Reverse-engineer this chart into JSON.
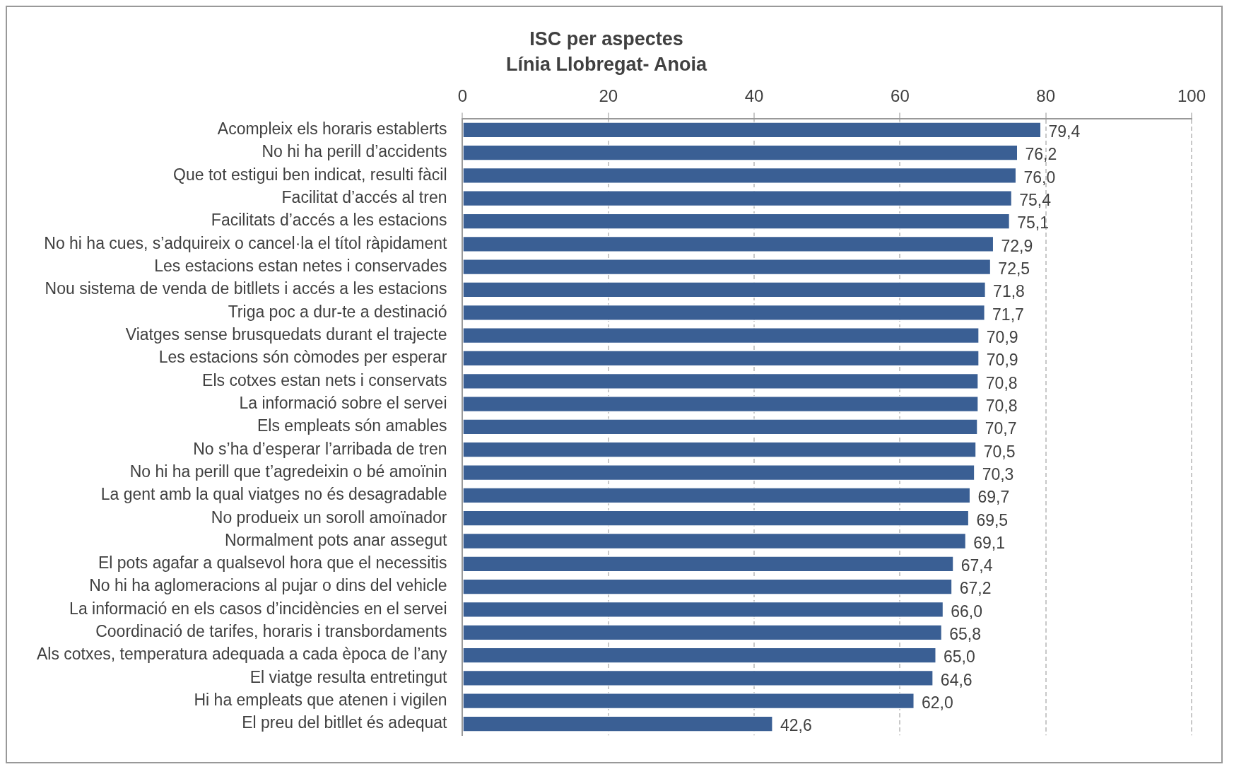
{
  "chart_data": {
    "type": "bar",
    "orientation": "horizontal",
    "title": "ISC per aspectes",
    "subtitle": "Línia Llobregat- Anoia",
    "categories": [
      "Acompleix els horaris establerts",
      "No hi ha perill d’accidents",
      "Que tot estigui ben indicat, resulti fàcil",
      "Facilitat d’accés al tren",
      "Facilitats d’accés a les estacions",
      "No hi ha cues, s’adquireix o cancel·la el títol ràpidament",
      "Les estacions estan netes i conservades",
      "Nou sistema de venda de bitllets i accés a les estacions",
      "Triga poc a dur-te a destinació",
      "Viatges sense brusquedats durant el trajecte",
      "Les estacions són còmodes per esperar",
      "Els cotxes estan nets i conservats",
      "La informació sobre el servei",
      "Els empleats són amables",
      "No s’ha d’esperar l’arribada de tren",
      "No hi ha perill que t’agredeixin o bé amoïnin",
      "La gent amb la qual viatges no és desagradable",
      "No produeix un soroll amoïnador",
      "Normalment pots anar assegut",
      "El pots agafar a qualsevol hora que el necessitis",
      "No hi ha aglomeracions al pujar o dins del vehicle",
      "La informació en els casos d’incidències en el servei",
      "Coordinació de tarifes, horaris i transbordaments",
      "Als cotxes, temperatura adequada a cada època de l’any",
      "El viatge resulta entretingut",
      "Hi ha empleats que atenen i vigilen",
      "El preu del bitllet és adequat"
    ],
    "values": [
      79.4,
      76.2,
      76.0,
      75.4,
      75.1,
      72.9,
      72.5,
      71.8,
      71.7,
      70.9,
      70.9,
      70.8,
      70.8,
      70.7,
      70.5,
      70.3,
      69.7,
      69.5,
      69.1,
      67.4,
      67.2,
      66.0,
      65.8,
      65.0,
      64.6,
      62.0,
      42.6
    ],
    "value_labels": [
      "79,4",
      "76,2",
      "76,0",
      "75,4",
      "75,1",
      "72,9",
      "72,5",
      "71,8",
      "71,7",
      "70,9",
      "70,9",
      "70,8",
      "70,8",
      "70,7",
      "70,5",
      "70,3",
      "69,7",
      "69,5",
      "69,1",
      "67,4",
      "67,2",
      "66,0",
      "65,8",
      "65,0",
      "64,6",
      "62,0",
      "42,6"
    ],
    "color": "#3a5f94",
    "xlim": [
      0,
      100
    ],
    "xticks": [
      0,
      20,
      40,
      60,
      80,
      100
    ],
    "grid": "x",
    "legend": false
  }
}
